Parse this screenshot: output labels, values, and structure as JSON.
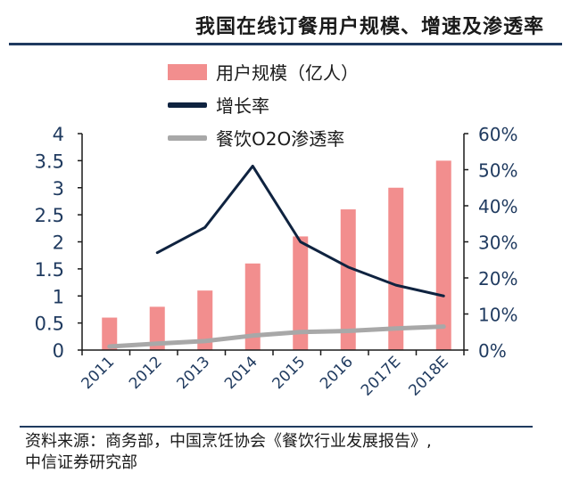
{
  "title": "我国在线订餐用户规模、增速及渗透率",
  "legend": [
    {
      "label": "用户规模（亿人）",
      "kind": "bar"
    },
    {
      "label": "增长率",
      "kind": "line"
    },
    {
      "label": "餐饮O2O渗透率",
      "kind": "line"
    }
  ],
  "source_line1": "资料来源：商务部，中国烹饪协会《餐饮行业发展报告》,",
  "source_line2": "中信证券研究部",
  "colors": {
    "bar": "#f28e8e",
    "growth_line": "#0f2340",
    "penetration_line": "#a8a8a8",
    "axis_text": "#1f3a5f"
  },
  "chart_data": {
    "type": "bar",
    "categories": [
      "2011",
      "2012",
      "2013",
      "2014",
      "2015",
      "2016",
      "2017E",
      "2018E"
    ],
    "series": [
      {
        "name": "用户规模（亿人）",
        "type": "bar",
        "axis": "left",
        "values": [
          0.6,
          0.8,
          1.1,
          1.6,
          2.1,
          2.6,
          3.0,
          3.5
        ]
      },
      {
        "name": "增长率",
        "type": "line",
        "axis": "right",
        "values": [
          null,
          27,
          34,
          51,
          30,
          23,
          18,
          15
        ]
      },
      {
        "name": "餐饮O2O渗透率",
        "type": "line",
        "axis": "right",
        "values": [
          1,
          1.8,
          2.5,
          4,
          5,
          5.3,
          6,
          6.5
        ]
      }
    ],
    "left_axis": {
      "ylim": [
        0,
        4
      ],
      "ticks": [
        "0",
        "0.5",
        "1",
        "1.5",
        "2",
        "2.5",
        "3",
        "3.5",
        "4"
      ]
    },
    "right_axis": {
      "ylim": [
        0,
        60
      ],
      "ticks": [
        "0%",
        "10%",
        "20%",
        "30%",
        "40%",
        "50%",
        "60%"
      ]
    },
    "legend_position": "top"
  }
}
